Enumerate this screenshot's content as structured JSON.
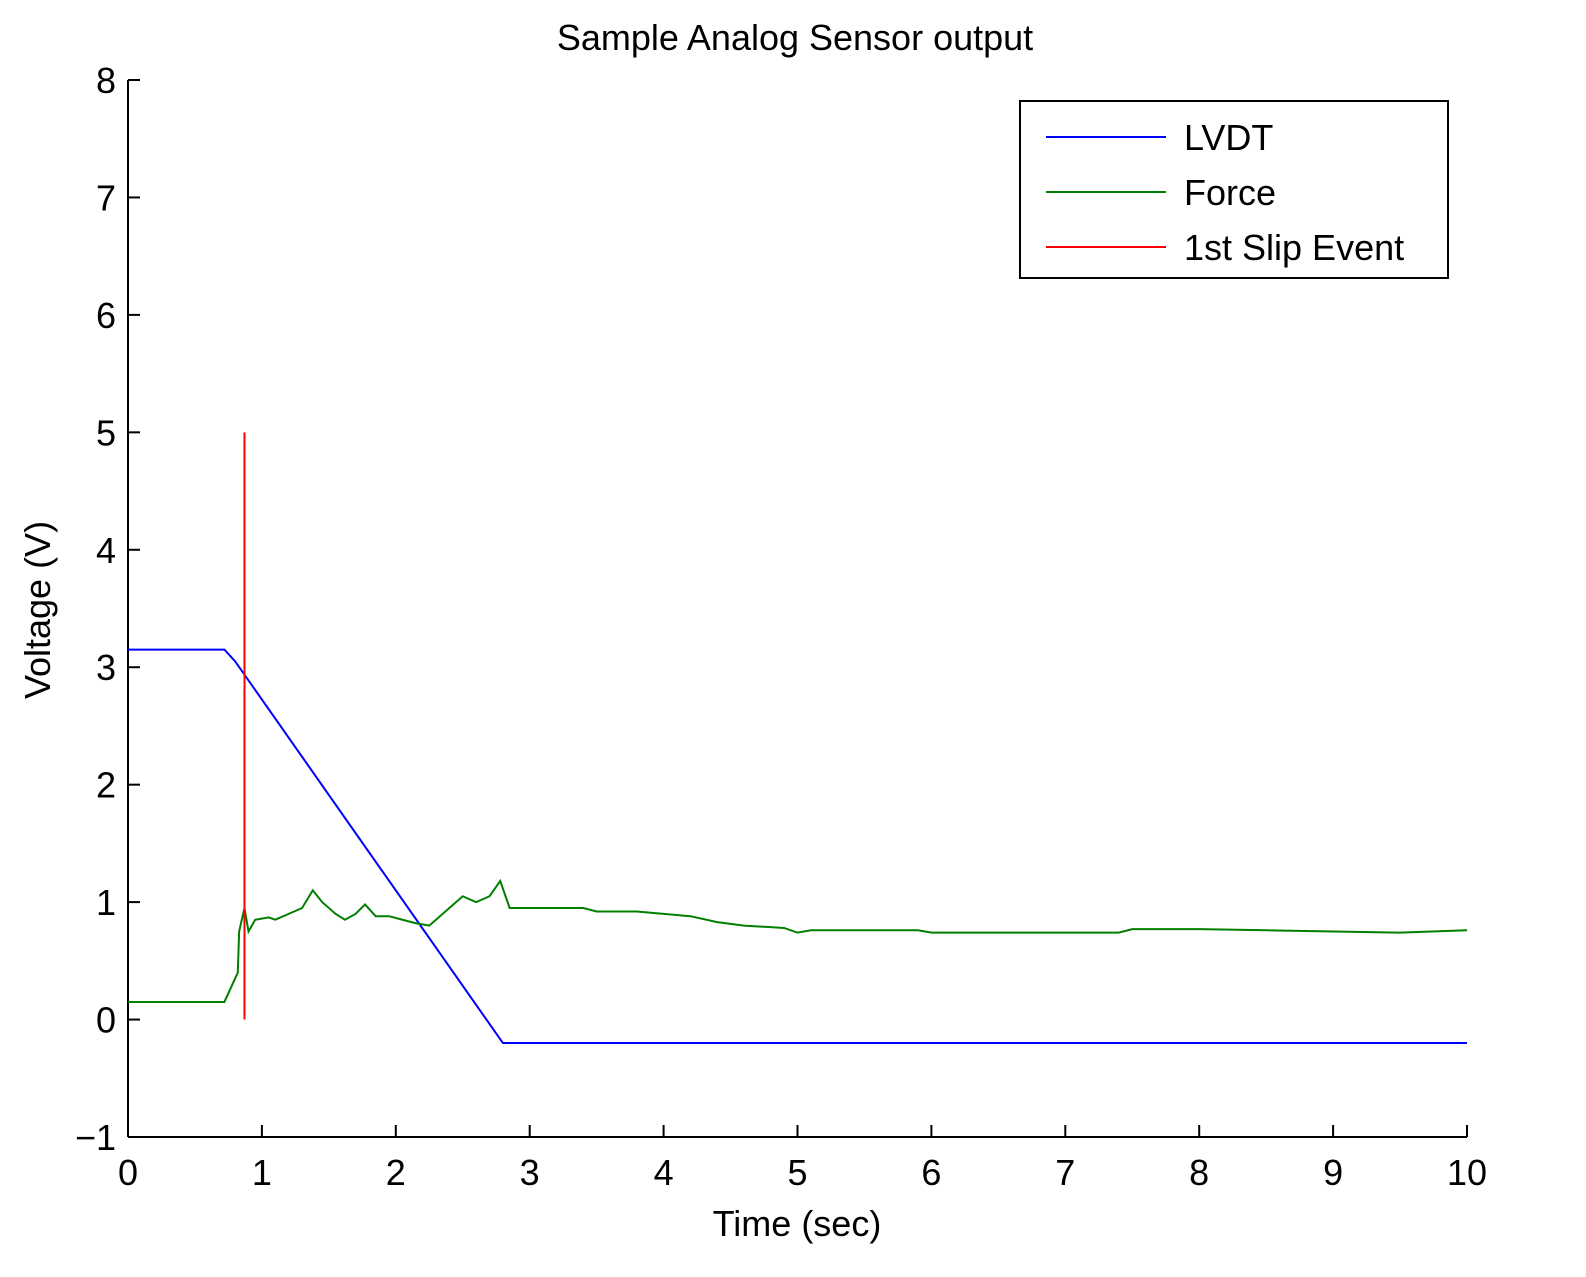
{
  "chart_data": {
    "type": "line",
    "title": "Sample Analog Sensor output",
    "x_label": "Time (sec)",
    "y_label": "Voltage (V)",
    "xlim": [
      0,
      10
    ],
    "xticks": [
      0,
      1,
      2,
      3,
      4,
      5,
      6,
      7,
      8,
      9,
      10
    ],
    "ylim": [
      -1,
      8
    ],
    "yticks": [
      {
        "value": -1,
        "label": "−1"
      },
      0,
      1,
      2,
      3,
      4,
      5,
      6,
      7,
      8
    ],
    "legend": "upper right",
    "series": [
      {
        "name": "LVDT",
        "color": "#0000ff",
        "x": [
          0,
          0.72,
          0.8,
          2.8,
          10
        ],
        "values": [
          3.15,
          3.15,
          3.05,
          -0.2,
          -0.2
        ]
      },
      {
        "name": "Force",
        "color": "#007f00",
        "x": [
          0,
          0.72,
          0.76,
          0.82,
          0.83,
          0.87,
          0.9,
          0.95,
          1.05,
          1.1,
          1.2,
          1.3,
          1.38,
          1.45,
          1.55,
          1.62,
          1.7,
          1.77,
          1.85,
          1.95,
          2.05,
          2.15,
          2.25,
          2.3,
          2.4,
          2.5,
          2.6,
          2.7,
          2.78,
          2.85,
          3.0,
          3.4,
          3.5,
          3.8,
          4.0,
          4.2,
          4.4,
          4.6,
          4.9,
          5.0,
          5.1,
          5.9,
          6.0,
          7.4,
          7.5,
          8.0,
          8.5,
          9.0,
          9.5,
          10
        ],
        "values": [
          0.15,
          0.15,
          0.25,
          0.4,
          0.75,
          0.95,
          0.75,
          0.85,
          0.87,
          0.85,
          0.9,
          0.95,
          1.1,
          1.0,
          0.9,
          0.85,
          0.9,
          0.98,
          0.88,
          0.88,
          0.85,
          0.82,
          0.8,
          0.85,
          0.95,
          1.05,
          1.0,
          1.05,
          1.18,
          0.95,
          0.95,
          0.95,
          0.92,
          0.92,
          0.9,
          0.88,
          0.83,
          0.8,
          0.78,
          0.74,
          0.76,
          0.76,
          0.74,
          0.74,
          0.77,
          0.77,
          0.76,
          0.75,
          0.74,
          0.76
        ]
      },
      {
        "name": "1st Slip Event",
        "color": "#ff0000",
        "x": [
          0.87,
          0.87
        ],
        "values": [
          0,
          5
        ]
      }
    ]
  }
}
